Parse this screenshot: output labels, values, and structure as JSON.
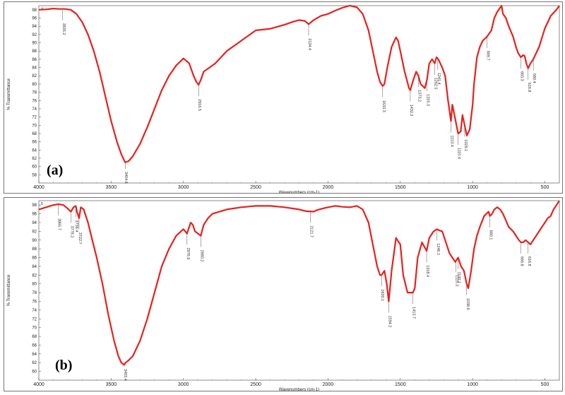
{
  "chart_data": [
    {
      "type": "line",
      "panel_label": "(a)",
      "xlabel": "Wavenumbers (cm-1)",
      "ylabel": "% Transmittance",
      "xlim": [
        4000,
        400
      ],
      "ylim": [
        56,
        99
      ],
      "x_ticks": [
        "4000",
        "3500",
        "3000",
        "2500",
        "2000",
        "1500",
        "1000",
        "500"
      ],
      "y_ticks": [
        "98",
        "96",
        "94",
        "92",
        "90",
        "88",
        "86",
        "84",
        "82",
        "80",
        "78",
        "76",
        "74",
        "72",
        "70",
        "68",
        "66",
        "64",
        "62",
        "60",
        "58"
      ],
      "color": "#e8201c",
      "series": [
        {
          "x": [
            4000,
            3950,
            3900,
            3860,
            3820,
            3780,
            3740,
            3700,
            3660,
            3620,
            3580,
            3540,
            3500,
            3460,
            3430,
            3403,
            3380,
            3350,
            3300,
            3250,
            3200,
            3150,
            3100,
            3050,
            3000,
            2960,
            2930,
            2910,
            2895,
            2880,
            2860,
            2820,
            2780,
            2700,
            2600,
            2500,
            2400,
            2300,
            2250,
            2200,
            2160,
            2134,
            2100,
            2050,
            2000,
            1950,
            1900,
            1850,
            1800,
            1760,
            1720,
            1690,
            1660,
            1640,
            1622,
            1610,
            1590,
            1560,
            1530,
            1515,
            1500,
            1470,
            1440,
            1431,
            1410,
            1390,
            1375,
            1360,
            1330,
            1316,
            1300,
            1280,
            1262,
            1250,
            1241,
            1230,
            1210,
            1190,
            1170,
            1150,
            1140,
            1120,
            1100,
            1082,
            1070,
            1055,
            1040,
            1020,
            1000,
            990,
            970,
            950,
            930,
            900,
            870,
            850,
            830,
            810,
            800,
            790,
            770,
            750,
            720,
            700,
            685,
            666,
            650,
            640,
            628,
            616,
            600,
            580,
            560,
            540,
            500,
            460,
            420,
            400
          ],
          "y": [
            98.0,
            98.1,
            98.3,
            98.2,
            98.2,
            98.0,
            97.0,
            95.0,
            92.0,
            88.0,
            83.0,
            77.0,
            71.0,
            66.0,
            63.0,
            61.0,
            61.3,
            62.5,
            65.5,
            69.5,
            74.0,
            78.5,
            82.0,
            84.5,
            86.2,
            85.0,
            82.0,
            80.5,
            79.8,
            81.0,
            83.0,
            84.0,
            85.0,
            88.0,
            90.5,
            93.0,
            93.4,
            94.4,
            95.0,
            95.5,
            95.3,
            94.5,
            95.5,
            96.5,
            97.0,
            97.8,
            98.5,
            99.0,
            98.6,
            97.0,
            93.0,
            88.0,
            83.0,
            80.5,
            79.5,
            80.0,
            84.0,
            89.0,
            91.3,
            90.5,
            88.0,
            83.0,
            79.0,
            78.5,
            81.0,
            83.0,
            82.0,
            80.0,
            79.0,
            81.0,
            85.0,
            86.0,
            85.0,
            86.5,
            86.2,
            85.5,
            84.0,
            82.0,
            76.0,
            71.0,
            75.0,
            71.5,
            68.0,
            68.5,
            72.5,
            70.0,
            67.5,
            69.0,
            75.0,
            80.0,
            86.5,
            89.0,
            90.5,
            91.5,
            93.0,
            96.0,
            97.5,
            98.5,
            99.0,
            97.0,
            96.0,
            94.0,
            91.5,
            89.0,
            87.5,
            86.5,
            87.0,
            86.8,
            85.0,
            83.8,
            85.0,
            86.0,
            87.5,
            89.0,
            93.5,
            96.5,
            98.0,
            99.0
          ]
        }
      ],
      "annotations": [
        {
          "label": "3835.2",
          "x": 3835
        },
        {
          "label": "3404.6",
          "x": 3403
        },
        {
          "label": "2916.5",
          "x": 2895
        },
        {
          "label": "2134.4",
          "x": 2134
        },
        {
          "label": "1633.3",
          "x": 1622
        },
        {
          "label": "1432.2",
          "x": 1431
        },
        {
          "label": "1373.2",
          "x": 1375
        },
        {
          "label": "1316.3",
          "x": 1316
        },
        {
          "label": "1262.5",
          "x": 1262
        },
        {
          "label": "1241.4",
          "x": 1241
        },
        {
          "label": "1153.4",
          "x": 1150
        },
        {
          "label": "1110.4",
          "x": 1100
        },
        {
          "label": "1029.1",
          "x": 1055
        },
        {
          "label": "889.7",
          "x": 900
        },
        {
          "label": "665.3",
          "x": 666
        },
        {
          "label": "616.8",
          "x": 616
        },
        {
          "label": "580.4",
          "x": 580
        }
      ]
    },
    {
      "type": "line",
      "panel_label": "(b)",
      "xlabel": "Wavenumbers (cm-1)",
      "ylabel": "% Transmittance",
      "xlim": [
        4000,
        400
      ],
      "ylim": [
        58,
        99
      ],
      "x_ticks": [
        "4000",
        "3500",
        "3000",
        "2500",
        "2000",
        "1500",
        "1000",
        "500"
      ],
      "y_ticks": [
        "98",
        "96",
        "94",
        "92",
        "90",
        "88",
        "86",
        "84",
        "82",
        "80",
        "78",
        "76",
        "74",
        "72",
        "70",
        "68",
        "66",
        "64",
        "62",
        "60"
      ],
      "color": "#e8201c",
      "series": [
        {
          "x": [
            4000,
            3950,
            3900,
            3865,
            3830,
            3800,
            3778,
            3760,
            3745,
            3736,
            3722,
            3710,
            3690,
            3660,
            3630,
            3600,
            3560,
            3520,
            3480,
            3450,
            3430,
            3410,
            3400,
            3380,
            3350,
            3300,
            3250,
            3200,
            3150,
            3100,
            3050,
            3000,
            2975,
            2960,
            2950,
            2935,
            2920,
            2880,
            2860,
            2830,
            2800,
            2700,
            2600,
            2500,
            2400,
            2300,
            2200,
            2150,
            2100,
            2080,
            2040,
            2000,
            1950,
            1900,
            1850,
            1800,
            1760,
            1720,
            1690,
            1660,
            1640,
            1630,
            1610,
            1594,
            1580,
            1560,
            1530,
            1500,
            1480,
            1450,
            1413,
            1400,
            1380,
            1350,
            1318,
            1300,
            1270,
            1246,
            1230,
            1210,
            1190,
            1160,
            1140,
            1120,
            1100,
            1080,
            1060,
            1041,
            1030,
            1010,
            990,
            970,
            950,
            920,
            890,
            880,
            865,
            850,
            830,
            810,
            790,
            770,
            750,
            720,
            700,
            680,
            666,
            650,
            633,
            616,
            600,
            580,
            560,
            540,
            520,
            500,
            480,
            460,
            440,
            420,
            400
          ],
          "y": [
            97.0,
            97.5,
            98.0,
            98.2,
            98.0,
            97.2,
            96.5,
            97.5,
            97.8,
            96.5,
            95.0,
            97.5,
            97.0,
            94.0,
            90.0,
            86.0,
            80.0,
            73.0,
            67.0,
            63.5,
            62.0,
            61.5,
            62.0,
            62.5,
            63.5,
            67.0,
            72.0,
            78.0,
            84.0,
            88.0,
            91.0,
            92.5,
            91.5,
            93.0,
            94.0,
            93.5,
            92.0,
            91.0,
            93.5,
            95.0,
            96.0,
            97.0,
            97.5,
            97.8,
            97.8,
            97.5,
            97.0,
            96.6,
            96.5,
            96.8,
            97.2,
            97.5,
            97.8,
            97.6,
            97.5,
            97.8,
            97.0,
            94.0,
            89.0,
            84.0,
            82.0,
            82.0,
            83.0,
            80.0,
            76.0,
            83.0,
            90.5,
            89.0,
            82.0,
            78.0,
            78.0,
            79.0,
            86.0,
            89.5,
            87.5,
            90.5,
            92.0,
            92.5,
            92.2,
            92.0,
            90.0,
            87.0,
            86.0,
            85.0,
            86.0,
            84.0,
            83.0,
            80.0,
            79.0,
            83.0,
            88.0,
            91.0,
            93.0,
            95.5,
            96.5,
            95.5,
            96.0,
            97.0,
            97.5,
            97.0,
            96.0,
            94.5,
            93.0,
            92.0,
            91.0,
            90.0,
            89.5,
            89.5,
            90.0,
            89.5,
            89.0,
            90.0,
            91.0,
            92.0,
            93.0,
            94.0,
            95.0,
            95.5,
            97.0,
            98.0,
            99.0
          ]
        }
      ],
      "annotations": [
        {
          "label": "3865.7",
          "x": 3865
        },
        {
          "label": "3778.2",
          "x": 3778
        },
        {
          "label": "3736.4",
          "x": 3745
        },
        {
          "label": "3722.7",
          "x": 3722
        },
        {
          "label": "3403.4",
          "x": 3410
        },
        {
          "label": "2976.9",
          "x": 2975
        },
        {
          "label": "2880.2",
          "x": 2880
        },
        {
          "label": "2121.7",
          "x": 2121
        },
        {
          "label": "1630.1",
          "x": 1630
        },
        {
          "label": "1594.2",
          "x": 1580
        },
        {
          "label": "1413.7",
          "x": 1413
        },
        {
          "label": "1318.4",
          "x": 1318
        },
        {
          "label": "1246.1",
          "x": 1246
        },
        {
          "label": "1115.3",
          "x": 1115
        },
        {
          "label": "1100.1",
          "x": 1100
        },
        {
          "label": "1038.6",
          "x": 1041
        },
        {
          "label": "880.1",
          "x": 880
        },
        {
          "label": "666.8",
          "x": 666
        },
        {
          "label": "616.8",
          "x": 616
        }
      ]
    }
  ]
}
